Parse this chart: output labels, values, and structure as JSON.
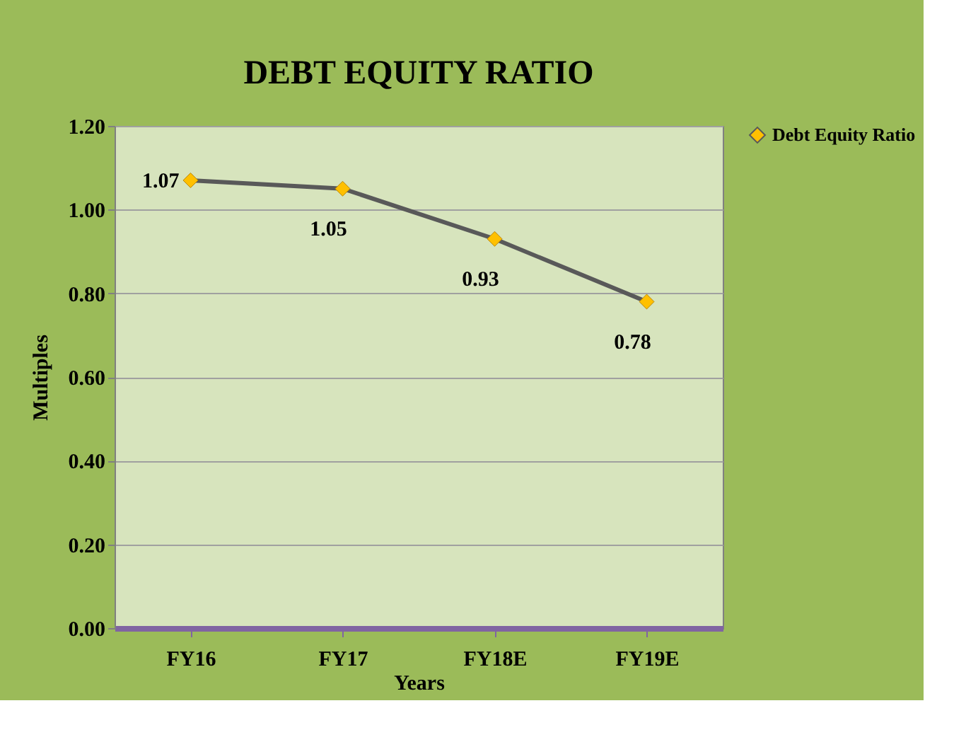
{
  "chart_data": {
    "type": "line",
    "title": "DEBT EQUITY RATIO",
    "xlabel": "Years",
    "ylabel": "Multiples",
    "categories": [
      "FY16",
      "FY17",
      "FY18E",
      "FY19E"
    ],
    "series": [
      {
        "name": "Debt Equity Ratio",
        "color": "#595959",
        "values": [
          1.07,
          1.05,
          0.93,
          0.78
        ]
      }
    ],
    "ylim": [
      0,
      1.2
    ],
    "yticks": [
      {
        "value": 0,
        "label": "0.00"
      },
      {
        "value": 0.2,
        "label": "0.20"
      },
      {
        "value": 0.4,
        "label": "0.40"
      },
      {
        "value": 0.6,
        "label": "0.60"
      },
      {
        "value": 0.8,
        "label": "0.80"
      },
      {
        "value": 1.0,
        "label": "1.00"
      },
      {
        "value": 1.2,
        "label": "1.20"
      }
    ],
    "grid": "y",
    "legend": "right",
    "marker": "diamond",
    "line_style": "solid",
    "data_labels": true
  }
}
